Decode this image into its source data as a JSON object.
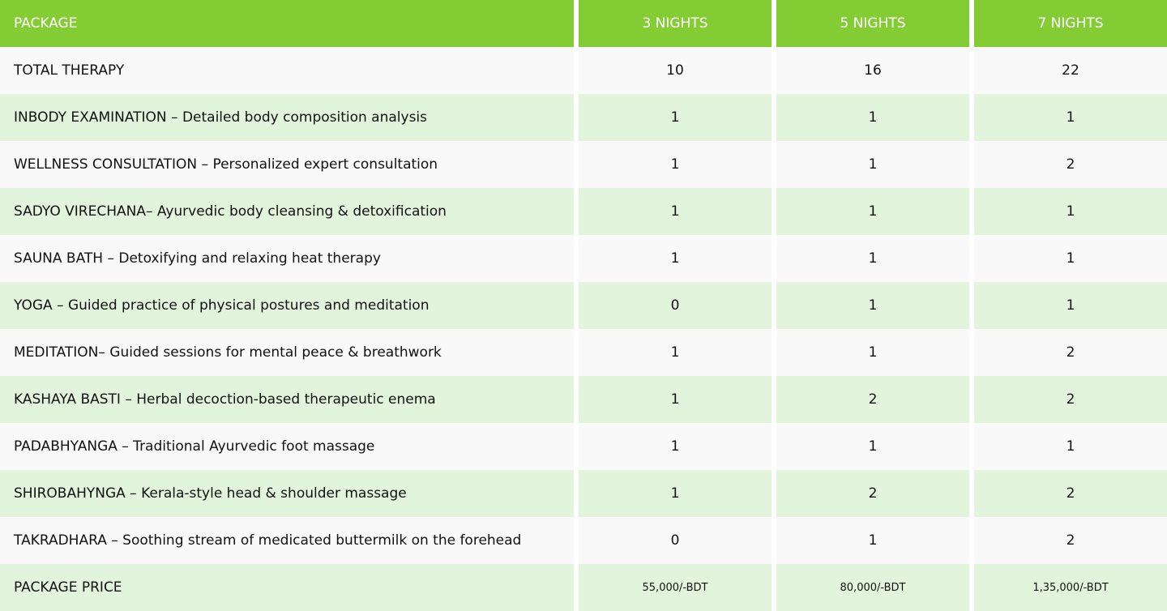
{
  "table": {
    "header": [
      "PACKAGE",
      "3 NIGHTS",
      "5 NIGHTS",
      "7 NIGHTS"
    ],
    "rows": [
      [
        "TOTAL THERAPY",
        "10",
        "16",
        "22"
      ],
      [
        "INBODY EXAMINATION – Detailed body composition analysis",
        "1",
        "1",
        "1"
      ],
      [
        "WELLNESS CONSULTATION – Personalized expert consultation",
        "1",
        "1",
        "2"
      ],
      [
        "SADYO VIRECHANA– Ayurvedic body cleansing & detoxification",
        "1",
        "1",
        "1"
      ],
      [
        "SAUNA BATH – Detoxifying and relaxing heat therapy",
        "1",
        "1",
        "1"
      ],
      [
        "YOGA – Guided practice of physical postures and meditation",
        "0",
        "1",
        "1"
      ],
      [
        "MEDITATION– Guided sessions for mental peace & breathwork",
        "1",
        "1",
        "2"
      ],
      [
        "KASHAYA BASTI – Herbal decoction-based therapeutic enema",
        "1",
        "2",
        "2"
      ],
      [
        "PADABHYANGA – Traditional Ayurvedic foot massage",
        "1",
        "1",
        "1"
      ],
      [
        "SHIROBAHYNGA – Kerala-style head & shoulder massage",
        "1",
        "2",
        "2"
      ],
      [
        "TAKRADHARA – Soothing stream of medicated buttermilk on the forehead",
        "0",
        "1",
        "2"
      ],
      [
        "PACKAGE PRICE",
        "55,000/-BDT",
        "80,000/-BDT",
        "1,35,000/-BDT"
      ]
    ]
  }
}
